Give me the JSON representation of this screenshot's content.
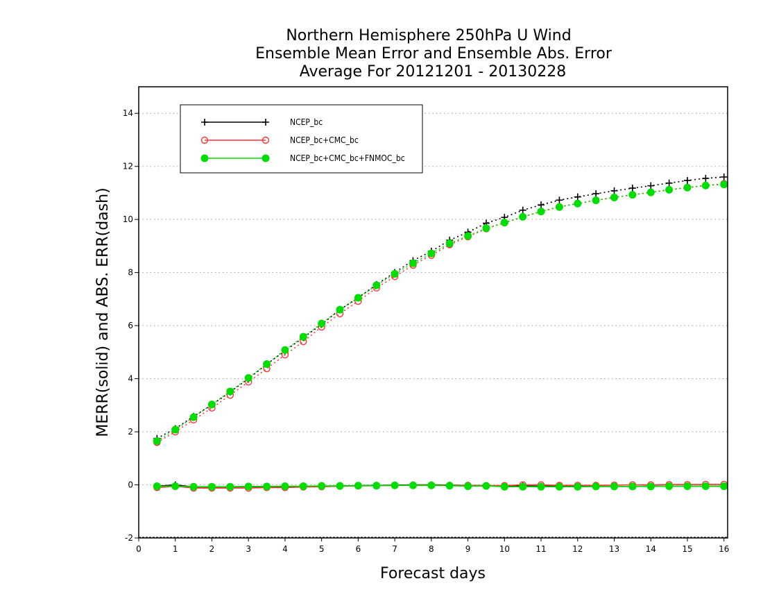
{
  "chart_data": {
    "type": "line",
    "title_lines": [
      "Northern Hemisphere 250hPa U Wind",
      "Ensemble Mean Error and Ensemble Abs. Error",
      "Average For 20121201 - 20130228"
    ],
    "xlabel": "Forecast days",
    "ylabel": "MERR(solid) and ABS. ERR(dash)",
    "xlim": [
      0,
      16.1
    ],
    "ylim": [
      -2,
      15
    ],
    "xticks": [
      0,
      1,
      2,
      3,
      4,
      5,
      6,
      7,
      8,
      9,
      10,
      11,
      12,
      13,
      14,
      15,
      16
    ],
    "yticks": [
      -2,
      0,
      2,
      4,
      6,
      8,
      10,
      12,
      14
    ],
    "grid": "horizontal dotted",
    "legend_position": "top-left",
    "x": [
      0.5,
      1,
      1.5,
      2,
      2.5,
      3,
      3.5,
      4,
      4.5,
      5,
      5.5,
      6,
      6.5,
      7,
      7.5,
      8,
      8.5,
      9,
      9.5,
      10,
      10.5,
      11,
      11.5,
      12,
      12.5,
      13,
      13.5,
      14,
      14.5,
      15,
      15.5,
      16
    ],
    "series": [
      {
        "name": "NCEP_bc",
        "color": "#000000",
        "marker": "plus",
        "abs_err": [
          1.75,
          2.12,
          2.58,
          3.02,
          3.5,
          4.0,
          4.55,
          5.05,
          5.55,
          6.05,
          6.6,
          7.05,
          7.55,
          8.0,
          8.45,
          8.8,
          9.22,
          9.52,
          9.86,
          10.08,
          10.35,
          10.55,
          10.73,
          10.85,
          10.97,
          11.08,
          11.18,
          11.27,
          11.37,
          11.47,
          11.55,
          11.6
        ],
        "mean_err": [
          -0.05,
          0.0,
          -0.08,
          -0.08,
          -0.08,
          -0.07,
          -0.07,
          -0.07,
          -0.06,
          -0.05,
          -0.04,
          -0.03,
          -0.02,
          -0.01,
          0.0,
          0.0,
          -0.01,
          -0.02,
          -0.03,
          -0.03,
          -0.04,
          -0.05,
          -0.05,
          -0.06,
          -0.06,
          -0.06,
          -0.06,
          -0.05,
          -0.05,
          -0.05,
          -0.05,
          -0.05
        ]
      },
      {
        "name": "NCEP_bc+CMC_bc",
        "color": "#ff3333",
        "marker": "open-circle",
        "abs_err": [
          1.6,
          2.0,
          2.45,
          2.9,
          3.38,
          3.88,
          4.38,
          4.9,
          5.4,
          5.95,
          6.45,
          6.92,
          7.42,
          7.85,
          8.28,
          8.65,
          9.05,
          9.35,
          9.65,
          9.88,
          10.1,
          10.3,
          10.48,
          10.6,
          10.72,
          10.83,
          10.93,
          11.02,
          11.12,
          11.2,
          11.28,
          11.35
        ],
        "mean_err": [
          -0.1,
          -0.05,
          -0.12,
          -0.12,
          -0.12,
          -0.12,
          -0.1,
          -0.1,
          -0.08,
          -0.07,
          -0.05,
          -0.04,
          -0.03,
          -0.02,
          -0.01,
          -0.01,
          -0.02,
          -0.02,
          -0.03,
          -0.03,
          0.0,
          0.0,
          -0.02,
          -0.02,
          -0.02,
          -0.01,
          0.0,
          0.0,
          0.01,
          0.01,
          0.02,
          0.02
        ]
      },
      {
        "name": "NCEP_bc+CMC_bc+FNMOC_bc",
        "color": "#00dd00",
        "marker": "filled-circle",
        "abs_err": [
          1.65,
          2.08,
          2.55,
          3.03,
          3.52,
          4.03,
          4.55,
          5.08,
          5.58,
          6.08,
          6.6,
          7.05,
          7.52,
          7.95,
          8.35,
          8.72,
          9.1,
          9.38,
          9.67,
          9.88,
          10.1,
          10.3,
          10.47,
          10.6,
          10.72,
          10.83,
          10.93,
          11.02,
          11.12,
          11.2,
          11.28,
          11.32
        ],
        "mean_err": [
          -0.05,
          -0.05,
          -0.07,
          -0.07,
          -0.07,
          -0.06,
          -0.06,
          -0.05,
          -0.05,
          -0.04,
          -0.04,
          -0.03,
          -0.03,
          -0.02,
          -0.02,
          -0.02,
          -0.03,
          -0.05,
          -0.04,
          -0.07,
          -0.07,
          -0.07,
          -0.07,
          -0.07,
          -0.06,
          -0.06,
          -0.06,
          -0.06,
          -0.05,
          -0.05,
          -0.05,
          -0.05
        ]
      }
    ]
  }
}
